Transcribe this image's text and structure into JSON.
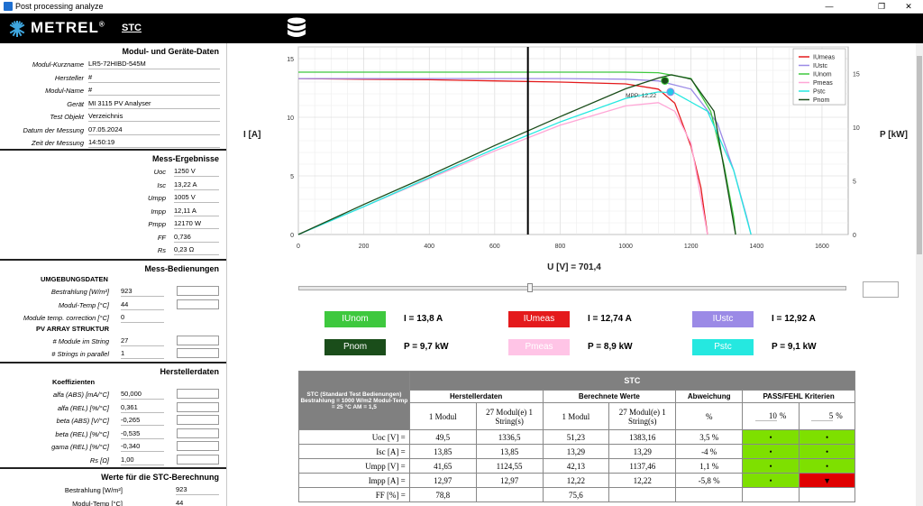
{
  "window": {
    "title": "Post processing analyze",
    "min": "—",
    "max": "❐",
    "close": "✕"
  },
  "brand": {
    "logo": "METREL",
    "reg": "®"
  },
  "header": {
    "title": "STC"
  },
  "left": {
    "modul": {
      "title": "Modul- und Geräte-Daten",
      "rows": [
        {
          "label": "Modul-Kurzname",
          "value": "LR5-72HIBD-545M"
        },
        {
          "label": "Hersteller",
          "value": "#"
        },
        {
          "label": "Modul-Name",
          "value": "#"
        },
        {
          "label": "Gerät",
          "value": "MI 3115 PV Analyser"
        },
        {
          "label": "Test Objekt",
          "value": "Verzeichnis"
        },
        {
          "label": "Datum der Messung",
          "value": "07.05.2024"
        },
        {
          "label": "Zeit der Messung",
          "value": "14:50:19"
        }
      ]
    },
    "mess": {
      "title": "Mess-Ergebnisse",
      "rows": [
        {
          "label": "Uoc",
          "value": "1250 V"
        },
        {
          "label": "Isc",
          "value": "13,22 A"
        },
        {
          "label": "Umpp",
          "value": "1005 V"
        },
        {
          "label": "Impp",
          "value": "12,11 A"
        },
        {
          "label": "Pmpp",
          "value": "12170 W"
        },
        {
          "label": "FF",
          "value": "0,736"
        },
        {
          "label": "Rs",
          "value": "0,23 Ω"
        }
      ]
    },
    "bed": {
      "title": "Mess-Bedienungen",
      "sub1": "UMGEBUNGSDATEN",
      "rows1": [
        {
          "label": "Bestrahlung  [W/m²]",
          "value": "923"
        },
        {
          "label": "Modul-Temp  [°C]",
          "value": "44"
        },
        {
          "label": "Module temp. correction  [°C]",
          "value": "0"
        }
      ],
      "sub2": "PV ARRAY STRUKTUR",
      "rows2": [
        {
          "label": "# Module im String",
          "value": "27"
        },
        {
          "label": "# Strings in parallel",
          "value": "1"
        }
      ]
    },
    "herst": {
      "title": "Herstellerdaten",
      "sub": "Koeffizienten",
      "rows": [
        {
          "label": "alfa (ABS) [mA/°C]",
          "value": "50,000"
        },
        {
          "label": "alfa (REL) [%/°C]",
          "value": "0,361"
        },
        {
          "label": "beta (ABS) [V/°C]",
          "value": "-0,265"
        },
        {
          "label": "beta (REL) [%/°C]",
          "value": "-0,535"
        },
        {
          "label": "gama (REL) [%/°C]",
          "value": "-0,340"
        },
        {
          "label": "Rs [Ω]",
          "value": "1,00"
        }
      ]
    },
    "stcw": {
      "title": "Werte für die STC-Berechnung",
      "rows": [
        {
          "label": "Bestrahlung [W/m²]",
          "value": "923"
        },
        {
          "label": "Modul-Temp [°C]",
          "value": "44"
        }
      ]
    }
  },
  "chart_data": {
    "type": "line",
    "ylabel_left": "I [A]",
    "ylabel_right": "P [kW]",
    "xlabel": "U [V] = 701,4",
    "x_ticks": [
      "0",
      "200",
      "400",
      "600",
      "800",
      "1000",
      "1200",
      "1400",
      "1600"
    ],
    "yl_ticks": [
      "0",
      "5",
      "10",
      "15"
    ],
    "yr_ticks": [
      "0",
      "5",
      "10",
      "15"
    ],
    "xlim": [
      0,
      1680
    ],
    "ylim_left": [
      0,
      16
    ],
    "ylim_right": [
      0,
      17.5
    ],
    "cursor_x": 701.4,
    "mpp_label": "MPP: 12,22",
    "legend_position": "top-right",
    "colors": {
      "IUmeas": "#e41a1c",
      "IUstc": "#9b8ae6",
      "IUnom": "#3ec83e",
      "Pmeas": "#ffa6d6",
      "Pstc": "#25e8e0",
      "Pnom": "#1a4d1a"
    },
    "series": [
      {
        "name": "IUmeas",
        "axis": "left",
        "x": [
          0,
          200,
          400,
          600,
          800,
          1000,
          1100,
          1150,
          1200,
          1230,
          1250
        ],
        "y": [
          13.3,
          13.25,
          13.2,
          13.1,
          13.0,
          12.85,
          12.4,
          11.2,
          7.5,
          4.0,
          0
        ]
      },
      {
        "name": "IUstc",
        "axis": "left",
        "x": [
          0,
          200,
          400,
          600,
          800,
          1000,
          1100,
          1200,
          1280,
          1330,
          1370,
          1383
        ],
        "y": [
          13.3,
          13.3,
          13.3,
          13.3,
          13.3,
          13.25,
          13.1,
          12.4,
          9.5,
          5.5,
          1.5,
          0
        ]
      },
      {
        "name": "IUnom",
        "axis": "left",
        "x": [
          0,
          200,
          400,
          600,
          800,
          1000,
          1100,
          1200,
          1260,
          1300,
          1330,
          1336
        ],
        "y": [
          13.85,
          13.85,
          13.85,
          13.85,
          13.85,
          13.85,
          13.8,
          13.3,
          10.5,
          6.0,
          1.5,
          0
        ]
      },
      {
        "name": "Pmeas",
        "axis": "right",
        "x": [
          0,
          200,
          400,
          600,
          800,
          1000,
          1100,
          1150,
          1200,
          1250
        ],
        "y": [
          0,
          2.6,
          5.2,
          7.8,
          10.2,
          12.0,
          12.3,
          11.5,
          8.5,
          0
        ]
      },
      {
        "name": "Pstc",
        "axis": "right",
        "x": [
          0,
          200,
          400,
          600,
          800,
          1000,
          1100,
          1150,
          1250,
          1330,
          1383
        ],
        "y": [
          0,
          2.6,
          5.3,
          8.0,
          10.5,
          12.7,
          13.3,
          13.2,
          11.5,
          6.0,
          0
        ]
      },
      {
        "name": "Pnom",
        "axis": "right",
        "x": [
          0,
          200,
          400,
          600,
          800,
          1000,
          1100,
          1140,
          1200,
          1270,
          1336
        ],
        "y": [
          0,
          2.8,
          5.5,
          8.3,
          11.0,
          13.6,
          14.6,
          14.9,
          14.5,
          11.5,
          0
        ]
      }
    ]
  },
  "legendbar": [
    {
      "label": "IUnom",
      "eq": "I",
      "value": "13,8 A",
      "color": "#3ec83e",
      "text": "#ffffff"
    },
    {
      "label": "IUmeas",
      "eq": "I",
      "value": "12,74 A",
      "color": "#e41a1c",
      "text": "#ffffff"
    },
    {
      "label": "IUstc",
      "eq": "I",
      "value": "12,92 A",
      "color": "#9b8ae6",
      "text": "#ffffff"
    },
    {
      "label": "Pnom",
      "eq": "P",
      "value": "9,7 kW",
      "color": "#1a4d1a",
      "text": "#ffffff"
    },
    {
      "label": "Pmeas",
      "eq": "P",
      "value": "8,9 kW",
      "color": "#ffc4e6",
      "text": "#ffffff"
    },
    {
      "label": "Pstc",
      "eq": "P",
      "value": "9,1 kW",
      "color": "#25e8e0",
      "text": "#ffffff"
    }
  ],
  "table": {
    "corner": "STC (Standard Test Bedienungen) Bestrahlung = 1000 W/m2 Modul-Temp = 25 °C AM = 1,5",
    "stc": "STC",
    "hersteller": "Herstellerdaten",
    "berechnet": "Berechnete Werte",
    "abweichung": "Abweichung",
    "pass": "PASS/FEHL Kriterien",
    "c1": "1 Modul",
    "c2": "27 Modul(e) 1 String(s)",
    "c3": "1 Modul",
    "c4": "27 Modul(e) 1 String(s)",
    "c5": "%",
    "p1": "10",
    "p2": "5",
    "pct": "%",
    "rows": [
      {
        "label": "Uoc [V] =",
        "h1": "49,5",
        "h2": "1336,5",
        "b1": "51,23",
        "b2": "1383,16",
        "dev": "3,5  %",
        "k1": "•",
        "k2": "•",
        "s1": "pass",
        "s2": "pass"
      },
      {
        "label": "Isc [A] =",
        "h1": "13,85",
        "h2": "13,85",
        "b1": "13,29",
        "b2": "13,29",
        "dev": "-4  %",
        "k1": "•",
        "k2": "•",
        "s1": "pass",
        "s2": "pass"
      },
      {
        "label": "Umpp [V] =",
        "h1": "41,65",
        "h2": "1124,55",
        "b1": "42,13",
        "b2": "1137,46",
        "dev": "1,1  %",
        "k1": "•",
        "k2": "•",
        "s1": "pass",
        "s2": "pass"
      },
      {
        "label": "Impp [A] =",
        "h1": "12,97",
        "h2": "12,97",
        "b1": "12,22",
        "b2": "12,22",
        "dev": "-5,8  %",
        "k1": "•",
        "k2": "▼",
        "s1": "pass",
        "s2": "fail"
      },
      {
        "label": "FF [%] =",
        "h1": "78,8",
        "h2": "",
        "b1": "75,6",
        "b2": "",
        "dev": "",
        "k1": "",
        "k2": "",
        "s1": "",
        "s2": ""
      }
    ]
  }
}
